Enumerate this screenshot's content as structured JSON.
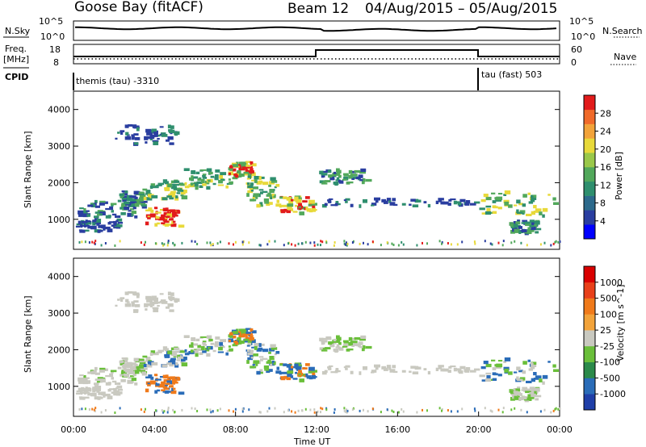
{
  "header": {
    "site": "Goose Bay (fitACF)",
    "beam": "Beam 12",
    "date_range": "04/Aug/2015 – 05/Aug/2015"
  },
  "noise_panel": {
    "left_label": "N.Sky",
    "right_label": "N.Search",
    "tick_top": "10^5",
    "tick_bottom": "10^0"
  },
  "freq_panel": {
    "label_line1": "Freq.",
    "label_line2": "[MHz]",
    "ticks_left": [
      "18",
      "8"
    ],
    "ticks_right": [
      "60",
      "0"
    ],
    "right_label": "Nave"
  },
  "cpid_panel": {
    "label": "CPID",
    "segments": [
      {
        "name": "themis (tau) -3310"
      },
      {
        "name": "tau (fast) 503"
      }
    ]
  },
  "chart_data": [
    {
      "type": "heatmap",
      "name": "power",
      "ylabel": "Slant Range [km]",
      "ylim": [
        180,
        4500
      ],
      "yticks": [
        "4000",
        "3000",
        "2000",
        "1000"
      ],
      "colorbar": {
        "label": "Power [dB]",
        "ticks": [
          "28",
          "24",
          "20",
          "16",
          "12",
          "8",
          "4"
        ],
        "colors": [
          "#0000ff",
          "#2a3ea0",
          "#2d6a8c",
          "#2f8f6e",
          "#52a85b",
          "#9ac84a",
          "#e8d93a",
          "#f2a33a",
          "#f06a2a",
          "#e21b1b"
        ]
      }
    },
    {
      "type": "heatmap",
      "name": "velocity",
      "ylabel": "Slant Range [km]",
      "xlabel": "Time UT",
      "ylim": [
        180,
        4500
      ],
      "yticks": [
        "4000",
        "3000",
        "2000",
        "1000"
      ],
      "xticks": [
        "00:00",
        "04:00",
        "08:00",
        "12:00",
        "16:00",
        "20:00",
        "00:00"
      ],
      "colorbar": {
        "label": "Velocity [m s^-1]",
        "ticks": [
          "1000",
          "500",
          "100",
          "25",
          "-25",
          "-100",
          "-500",
          "-1000"
        ],
        "colors": [
          "#1f3fa8",
          "#2a6cb8",
          "#2b8a4a",
          "#6abf3a",
          "#c9c9c0",
          "#f2a33a",
          "#f07a1a",
          "#e8401a",
          "#d90000"
        ]
      }
    }
  ]
}
